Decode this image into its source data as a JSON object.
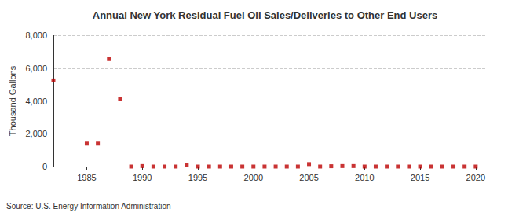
{
  "chart_data": {
    "type": "scatter",
    "title": "Annual New York Residual Fuel Oil Sales/Deliveries to Other End Users",
    "ylabel": "Thousand Gallons",
    "source": "Source: U.S. Energy Information Administration",
    "x": [
      1982,
      1985,
      1986,
      1987,
      1988,
      1989,
      1990,
      1991,
      1992,
      1993,
      1994,
      1995,
      1996,
      1997,
      1998,
      1999,
      2000,
      2001,
      2002,
      2003,
      2004,
      2005,
      2006,
      2007,
      2008,
      2009,
      2010,
      2011,
      2012,
      2013,
      2014,
      2015,
      2016,
      2017,
      2018,
      2019,
      2020
    ],
    "values": [
      5250,
      1400,
      1400,
      6550,
      4100,
      0,
      30,
      0,
      0,
      0,
      80,
      0,
      0,
      0,
      0,
      0,
      0,
      0,
      0,
      0,
      0,
      150,
      0,
      20,
      30,
      30,
      0,
      0,
      0,
      0,
      0,
      0,
      0,
      0,
      0,
      0,
      0
    ],
    "color": "#bb0000",
    "marker": "square",
    "xlim": [
      1982,
      2021
    ],
    "xticks": [
      1985,
      1990,
      1995,
      2000,
      2005,
      2010,
      2015,
      2020
    ],
    "ylim": [
      0,
      8000
    ],
    "yticks": [
      0,
      {
        "value": 2000,
        "label": "2,000"
      },
      {
        "value": 4000,
        "label": "4,000"
      },
      {
        "value": 6000,
        "label": "6,000"
      },
      {
        "value": 8000,
        "label": "8,000"
      }
    ],
    "grid": true
  }
}
